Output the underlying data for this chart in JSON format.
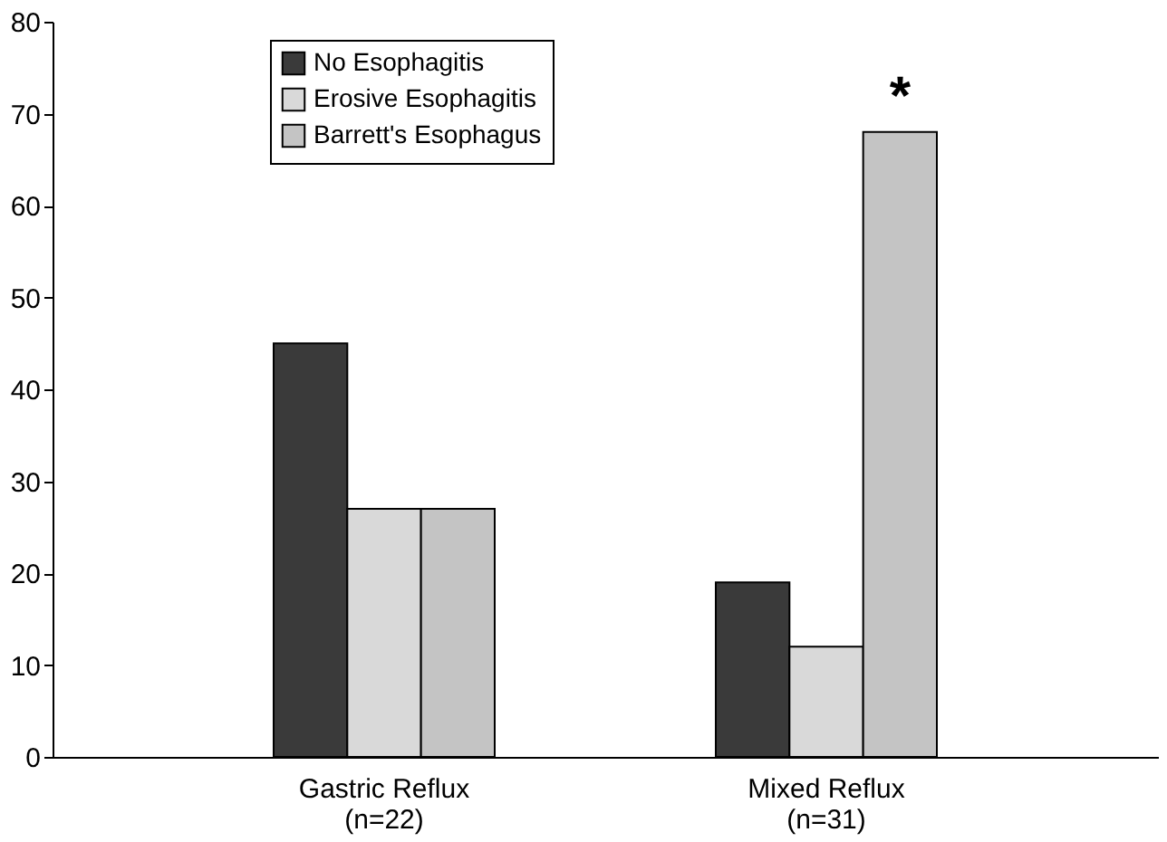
{
  "chart_data": {
    "type": "bar",
    "categories": [
      "Gastric Reflux\n(n=22)",
      "Mixed Reflux\n(n=31)"
    ],
    "series": [
      {
        "name": "No Esophagitis",
        "color": "#3a3a3a",
        "values": [
          45,
          19
        ]
      },
      {
        "name": "Erosive Esophagitis",
        "color": "#d9d9d9",
        "values": [
          27,
          12
        ]
      },
      {
        "name": "Barrett's Esophagus",
        "color": "#c4c4c4",
        "values": [
          27,
          68
        ]
      }
    ],
    "ylim": [
      0,
      80
    ],
    "yticks": [
      0,
      10,
      20,
      30,
      40,
      50,
      60,
      70,
      80
    ],
    "grid": false,
    "legend": "top",
    "annotations": [
      "*"
    ]
  }
}
